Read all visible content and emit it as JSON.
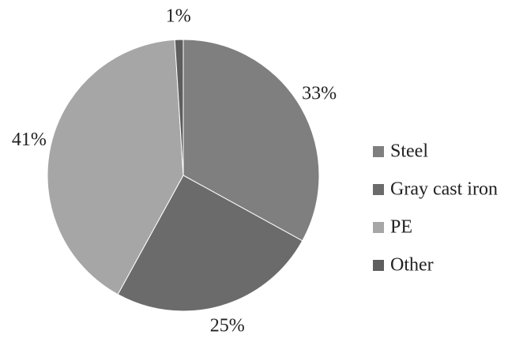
{
  "chart_data": {
    "type": "pie",
    "categories": [
      "Steel",
      "Gray cast iron",
      "PE",
      "Other"
    ],
    "values": [
      33,
      25,
      41,
      1
    ],
    "value_labels": [
      "33%",
      "25%",
      "41%",
      "1%"
    ],
    "colors": [
      "#7f7f7f",
      "#6b6b6b",
      "#a6a6a6",
      "#5e5e5e"
    ],
    "legend": "right"
  }
}
